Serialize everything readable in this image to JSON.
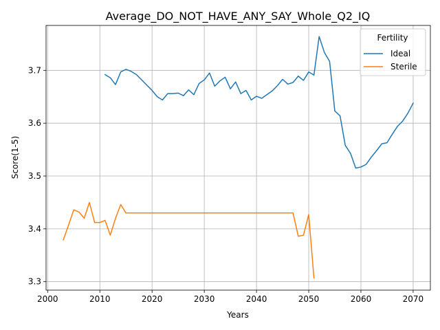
{
  "chart_data": {
    "type": "line",
    "title": "Average_DO_NOT_HAVE_ANY_SAY_Whole_Q2_IQ",
    "xlabel": "Years",
    "ylabel": "Score(1-5)",
    "xlim": [
      1999.7,
      2073.3
    ],
    "ylim": [
      3.284,
      3.785
    ],
    "x_ticks": [
      2000,
      2010,
      2020,
      2030,
      2040,
      2050,
      2060,
      2070
    ],
    "y_ticks": [
      3.3,
      3.4,
      3.5,
      3.6,
      3.7
    ],
    "grid": true,
    "legend": {
      "title": "Fertility",
      "placement": "upper right"
    },
    "series": [
      {
        "name": "Ideal",
        "color": "#1f77b4",
        "x": [
          2011,
          2012,
          2013,
          2014,
          2015,
          2016,
          2017,
          2018,
          2019,
          2020,
          2021,
          2022,
          2023,
          2024,
          2025,
          2026,
          2027,
          2028,
          2029,
          2030,
          2031,
          2032,
          2033,
          2034,
          2035,
          2036,
          2037,
          2038,
          2039,
          2040,
          2041,
          2042,
          2043,
          2044,
          2045,
          2046,
          2047,
          2048,
          2049,
          2050,
          2051,
          2052,
          2053,
          2054,
          2055,
          2056,
          2057,
          2058,
          2059,
          2060,
          2061,
          2062,
          2063,
          2064,
          2065,
          2066,
          2067,
          2068,
          2069,
          2070
        ],
        "y": [
          3.692,
          3.686,
          3.673,
          3.697,
          3.702,
          3.698,
          3.692,
          3.682,
          3.672,
          3.662,
          3.65,
          3.644,
          3.656,
          3.656,
          3.657,
          3.652,
          3.663,
          3.654,
          3.675,
          3.682,
          3.695,
          3.67,
          3.68,
          3.687,
          3.665,
          3.678,
          3.656,
          3.662,
          3.644,
          3.651,
          3.647,
          3.654,
          3.661,
          3.671,
          3.683,
          3.674,
          3.677,
          3.689,
          3.681,
          3.697,
          3.691,
          3.764,
          3.734,
          3.717,
          3.623,
          3.614,
          3.558,
          3.543,
          3.515,
          3.517,
          3.522,
          3.536,
          3.548,
          3.561,
          3.563,
          3.579,
          3.594,
          3.604,
          3.619,
          3.638
        ]
      },
      {
        "name": "Sterile",
        "color": "#ff7f0e",
        "x": [
          2003,
          2004,
          2005,
          2006,
          2007,
          2008,
          2009,
          2010,
          2011,
          2012,
          2013,
          2014,
          2015,
          2016,
          2017,
          2018,
          2019,
          2020,
          2021,
          2022,
          2023,
          2024,
          2025,
          2026,
          2027,
          2028,
          2029,
          2030,
          2031,
          2032,
          2033,
          2034,
          2035,
          2036,
          2037,
          2038,
          2039,
          2040,
          2041,
          2042,
          2043,
          2044,
          2045,
          2046,
          2047,
          2048,
          2049,
          2050,
          2051
        ],
        "y": [
          3.379,
          3.407,
          3.436,
          3.432,
          3.42,
          3.45,
          3.412,
          3.412,
          3.416,
          3.388,
          3.42,
          3.446,
          3.43,
          3.43,
          3.43,
          3.43,
          3.43,
          3.43,
          3.43,
          3.43,
          3.43,
          3.43,
          3.43,
          3.43,
          3.43,
          3.43,
          3.43,
          3.43,
          3.43,
          3.43,
          3.43,
          3.43,
          3.43,
          3.43,
          3.43,
          3.43,
          3.43,
          3.43,
          3.43,
          3.43,
          3.43,
          3.43,
          3.43,
          3.43,
          3.43,
          3.386,
          3.388,
          3.427,
          3.307
        ]
      }
    ]
  }
}
